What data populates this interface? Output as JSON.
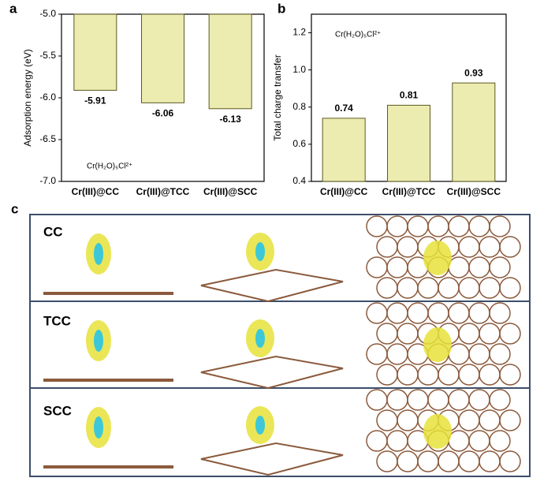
{
  "panel_labels": [
    "a",
    "b",
    "c"
  ],
  "chart_data": [
    {
      "type": "bar",
      "y_label": "Adsorption energy (eV)",
      "categories": [
        "Cr(III)@CC",
        "Cr(III)@TCC",
        "Cr(III)@SCC"
      ],
      "values": [
        -5.91,
        -6.06,
        -6.13
      ],
      "color": "#ecebb0",
      "ylim": [
        -7.0,
        -5.0
      ],
      "yticks": [
        {
          "value": -5.0,
          "label": "-5.0"
        },
        -5.5,
        {
          "value": -6.0,
          "label": "-6.0"
        },
        -6.5,
        {
          "value": -7.0,
          "label": "-7.0"
        }
      ],
      "annotation": "Cr(H₂O)₅Cl²⁺"
    },
    {
      "type": "bar",
      "y_label": "Total charge transfer",
      "categories": [
        "Cr(III)@CC",
        "Cr(III)@TCC",
        "Cr(III)@SCC"
      ],
      "values": [
        0.74,
        0.81,
        0.93
      ],
      "color": "#ecebb0",
      "ylim": [
        0.4,
        1.3
      ],
      "yticks": [
        0.4,
        0.6,
        0.8,
        {
          "value": 1.0,
          "label": "1.0"
        },
        1.2
      ],
      "annotation": "Cr(H₂O)₅Cl²⁺"
    }
  ],
  "panel_c": {
    "rows": [
      "CC",
      "TCC",
      "SCC"
    ]
  }
}
